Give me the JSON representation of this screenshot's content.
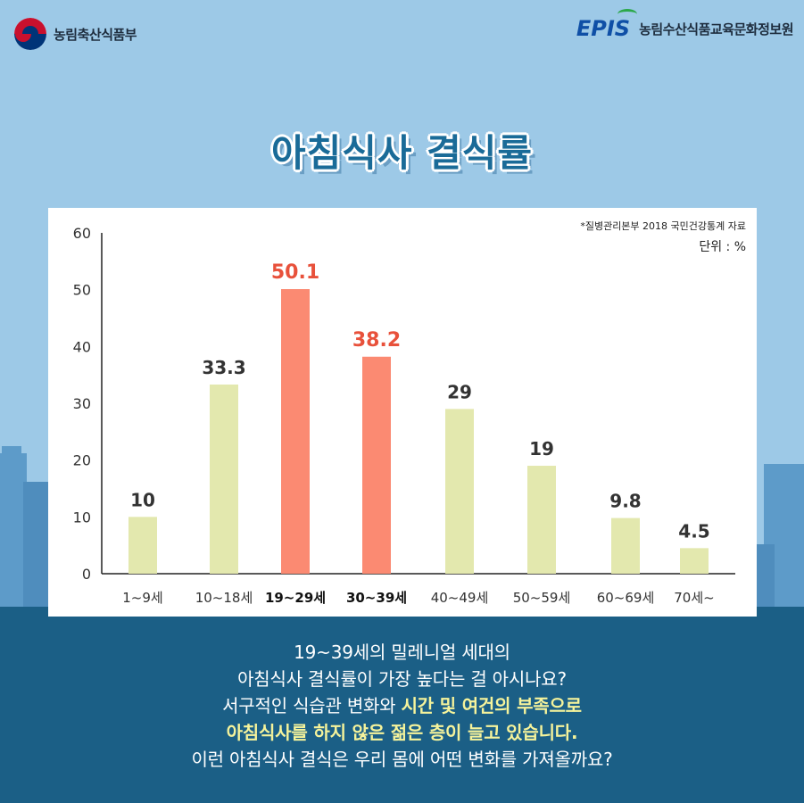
{
  "header": {
    "ministry_name": "농림축산식품부",
    "epis_logo": "EPIS",
    "institute_name": "농림수산식품교육문화정보원"
  },
  "title": "아침식사 결식률",
  "source_note": "*질병관리본부 2018 국민건강통계 자료",
  "unit_label": "단위 : %",
  "caption": {
    "line1": "19~39세의 밀레니얼 세대의",
    "line2": "아침식사 결식률이 가장 높다는 걸 아시나요?",
    "line3_plain": "서구적인 식습관 변화와 ",
    "line3_highlight": "시간 및 여건의 부족으로",
    "line4_highlight": "아침식사를 하지 않은 젊은 층이 늘고 있습니다.",
    "line5": "이런 아침식사 결식은 우리 몸에 어떤 변화를 가져올까요?"
  },
  "colors": {
    "normal_bar": "#e3e8ae",
    "highlight_bar": "#fb8a72",
    "highlight_label": "#e8513b",
    "normal_label": "#333333"
  },
  "chart_data": {
    "type": "bar",
    "title": "아침식사 결식률",
    "xlabel": "",
    "ylabel": "",
    "unit": "%",
    "ylim": [
      0,
      60
    ],
    "yticks": [
      0,
      10,
      20,
      30,
      40,
      50,
      60
    ],
    "categories": [
      "1~9세",
      "10~18세",
      "19~29세",
      "30~39세",
      "40~49세",
      "50~59세",
      "60~69세",
      "70세~"
    ],
    "values": [
      10,
      33.3,
      50.1,
      38.2,
      29,
      19,
      9.8,
      4.5
    ],
    "value_labels": [
      "10",
      "33.3",
      "50.1",
      "38.2",
      "29",
      "19",
      "9.8",
      "4.5"
    ],
    "highlighted": [
      false,
      false,
      true,
      true,
      false,
      false,
      false,
      false
    ],
    "grid": false,
    "legend": "none"
  }
}
